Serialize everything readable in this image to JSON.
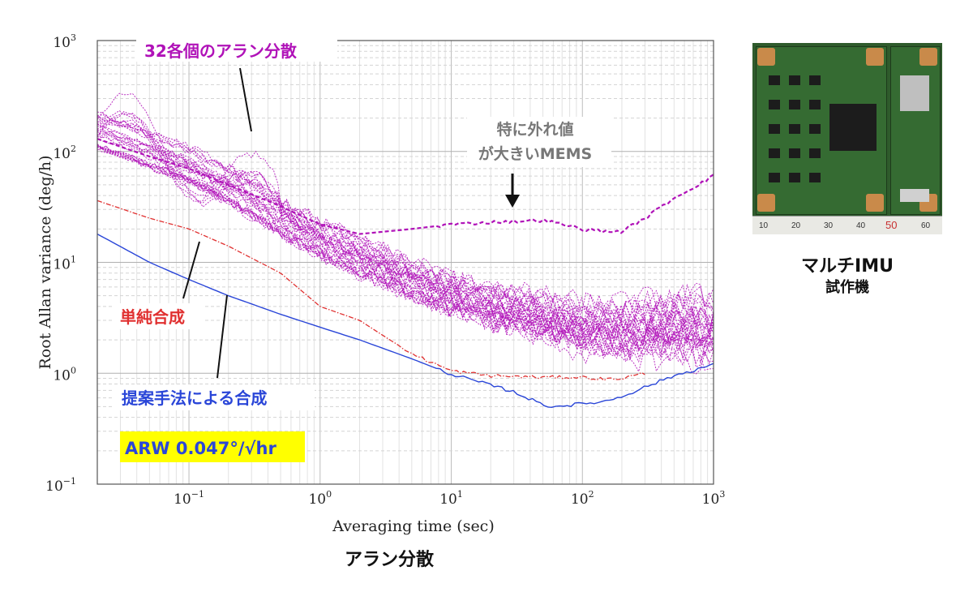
{
  "chart_data": {
    "type": "line",
    "xscale": "log",
    "yscale": "log",
    "xlim": [
      0.02,
      1000
    ],
    "ylim": [
      0.1,
      1000
    ],
    "xlabel": "Averaging time (sec)",
    "ylabel": "Root Allan variance (deg/h)",
    "x_ticks": [
      {
        "value": 0.1,
        "base": "10",
        "exp": "−1"
      },
      {
        "value": 1,
        "base": "10",
        "exp": "0"
      },
      {
        "value": 10,
        "base": "10",
        "exp": "1"
      },
      {
        "value": 100,
        "base": "10",
        "exp": "2"
      },
      {
        "value": 1000,
        "base": "10",
        "exp": "3"
      }
    ],
    "y_ticks": [
      {
        "value": 0.1,
        "base": "10",
        "exp": "−1"
      },
      {
        "value": 1,
        "base": "10",
        "exp": "0"
      },
      {
        "value": 10,
        "base": "10",
        "exp": "1"
      },
      {
        "value": 100,
        "base": "10",
        "exp": "2"
      },
      {
        "value": 1000,
        "base": "10",
        "exp": "3"
      }
    ],
    "series": [
      {
        "name": "提案手法による合成",
        "color": "#2a46d8",
        "style": "solid",
        "points": [
          [
            0.02,
            18
          ],
          [
            0.05,
            10
          ],
          [
            0.1,
            7
          ],
          [
            0.2,
            5
          ],
          [
            0.5,
            3.4
          ],
          [
            1,
            2.6
          ],
          [
            2,
            2
          ],
          [
            5,
            1.35
          ],
          [
            10,
            0.98
          ],
          [
            20,
            0.78
          ],
          [
            30,
            0.68
          ],
          [
            50,
            0.52
          ],
          [
            60,
            0.5
          ],
          [
            100,
            0.53
          ],
          [
            150,
            0.56
          ],
          [
            200,
            0.62
          ],
          [
            300,
            0.75
          ],
          [
            500,
            0.95
          ],
          [
            1000,
            1.2
          ]
        ]
      },
      {
        "name": "単純合成",
        "color": "#e03030",
        "style": "dashdot",
        "points": [
          [
            0.02,
            36
          ],
          [
            0.05,
            25
          ],
          [
            0.1,
            20
          ],
          [
            0.2,
            14
          ],
          [
            0.5,
            8
          ],
          [
            1,
            4
          ],
          [
            2,
            3
          ],
          [
            3,
            2.2
          ],
          [
            5,
            1.5
          ],
          [
            10,
            1.05
          ],
          [
            20,
            0.95
          ],
          [
            50,
            0.92
          ],
          [
            100,
            0.92
          ],
          [
            150,
            0.88
          ],
          [
            200,
            0.9
          ],
          [
            300,
            1.0
          ]
        ]
      },
      {
        "name": "特に外れ値が大きいMEMS",
        "color": "#b012b8",
        "style": "dashed",
        "points": [
          [
            0.02,
            130
          ],
          [
            0.05,
            90
          ],
          [
            0.1,
            70
          ],
          [
            0.2,
            50
          ],
          [
            0.5,
            32
          ],
          [
            1,
            22
          ],
          [
            2,
            18
          ],
          [
            5,
            20
          ],
          [
            10,
            22
          ],
          [
            20,
            23
          ],
          [
            50,
            24
          ],
          [
            100,
            20
          ],
          [
            150,
            19
          ],
          [
            200,
            19
          ],
          [
            300,
            25
          ],
          [
            500,
            38
          ],
          [
            1000,
            60
          ]
        ]
      },
      {
        "name": "32各個のアラン分散",
        "color": "#b012b8",
        "style": "dotted",
        "count": 32,
        "points": [
          [
            0.02,
            150
          ],
          [
            0.05,
            100
          ],
          [
            0.1,
            75
          ],
          [
            0.2,
            48
          ],
          [
            0.5,
            25
          ],
          [
            1,
            16
          ],
          [
            2,
            11
          ],
          [
            5,
            7
          ],
          [
            10,
            5
          ],
          [
            20,
            3.8
          ],
          [
            50,
            2.8
          ],
          [
            100,
            2.2
          ],
          [
            200,
            2
          ],
          [
            500,
            2
          ],
          [
            1000,
            1.8
          ]
        ]
      }
    ],
    "annotations": {
      "individual": "32各個のアラン分散",
      "outlier_line1": "特に外れ値",
      "outlier_line2": "が大きいMEMS",
      "simple": "単純合成",
      "proposed": "提案手法による合成",
      "arw": "ARW 0.047°/√hr"
    },
    "caption": "アラン分散"
  },
  "photo": {
    "title": "マルチIMU",
    "subtitle": "試作機",
    "ruler_labels": [
      "10",
      "20",
      "30",
      "40",
      "50",
      "60"
    ]
  },
  "colors": {
    "magenta": "#b012b8",
    "red": "#e03030",
    "blue": "#2a46d8",
    "gray_label": "#777777",
    "highlight": "#ffff00"
  }
}
